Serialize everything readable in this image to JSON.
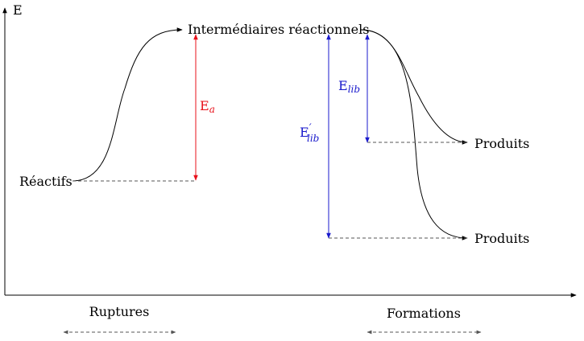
{
  "axes": {
    "y_label": "E"
  },
  "levels": {
    "reactifs": "Réactifs",
    "intermediaires": "Intermédiaires réactionnels",
    "produits_1": "Produits",
    "produits_2": "Produits"
  },
  "energies": {
    "ea": {
      "main": "E",
      "sub": "a",
      "color": "#e8101a"
    },
    "elib": {
      "main": "E",
      "sub": "lib",
      "color": "#1a1acc"
    },
    "elib_prime": {
      "main": "E",
      "prime": "′",
      "sub": "lib",
      "color": "#1a1acc"
    }
  },
  "phases": {
    "ruptures": "Ruptures",
    "formations": "Formations"
  }
}
